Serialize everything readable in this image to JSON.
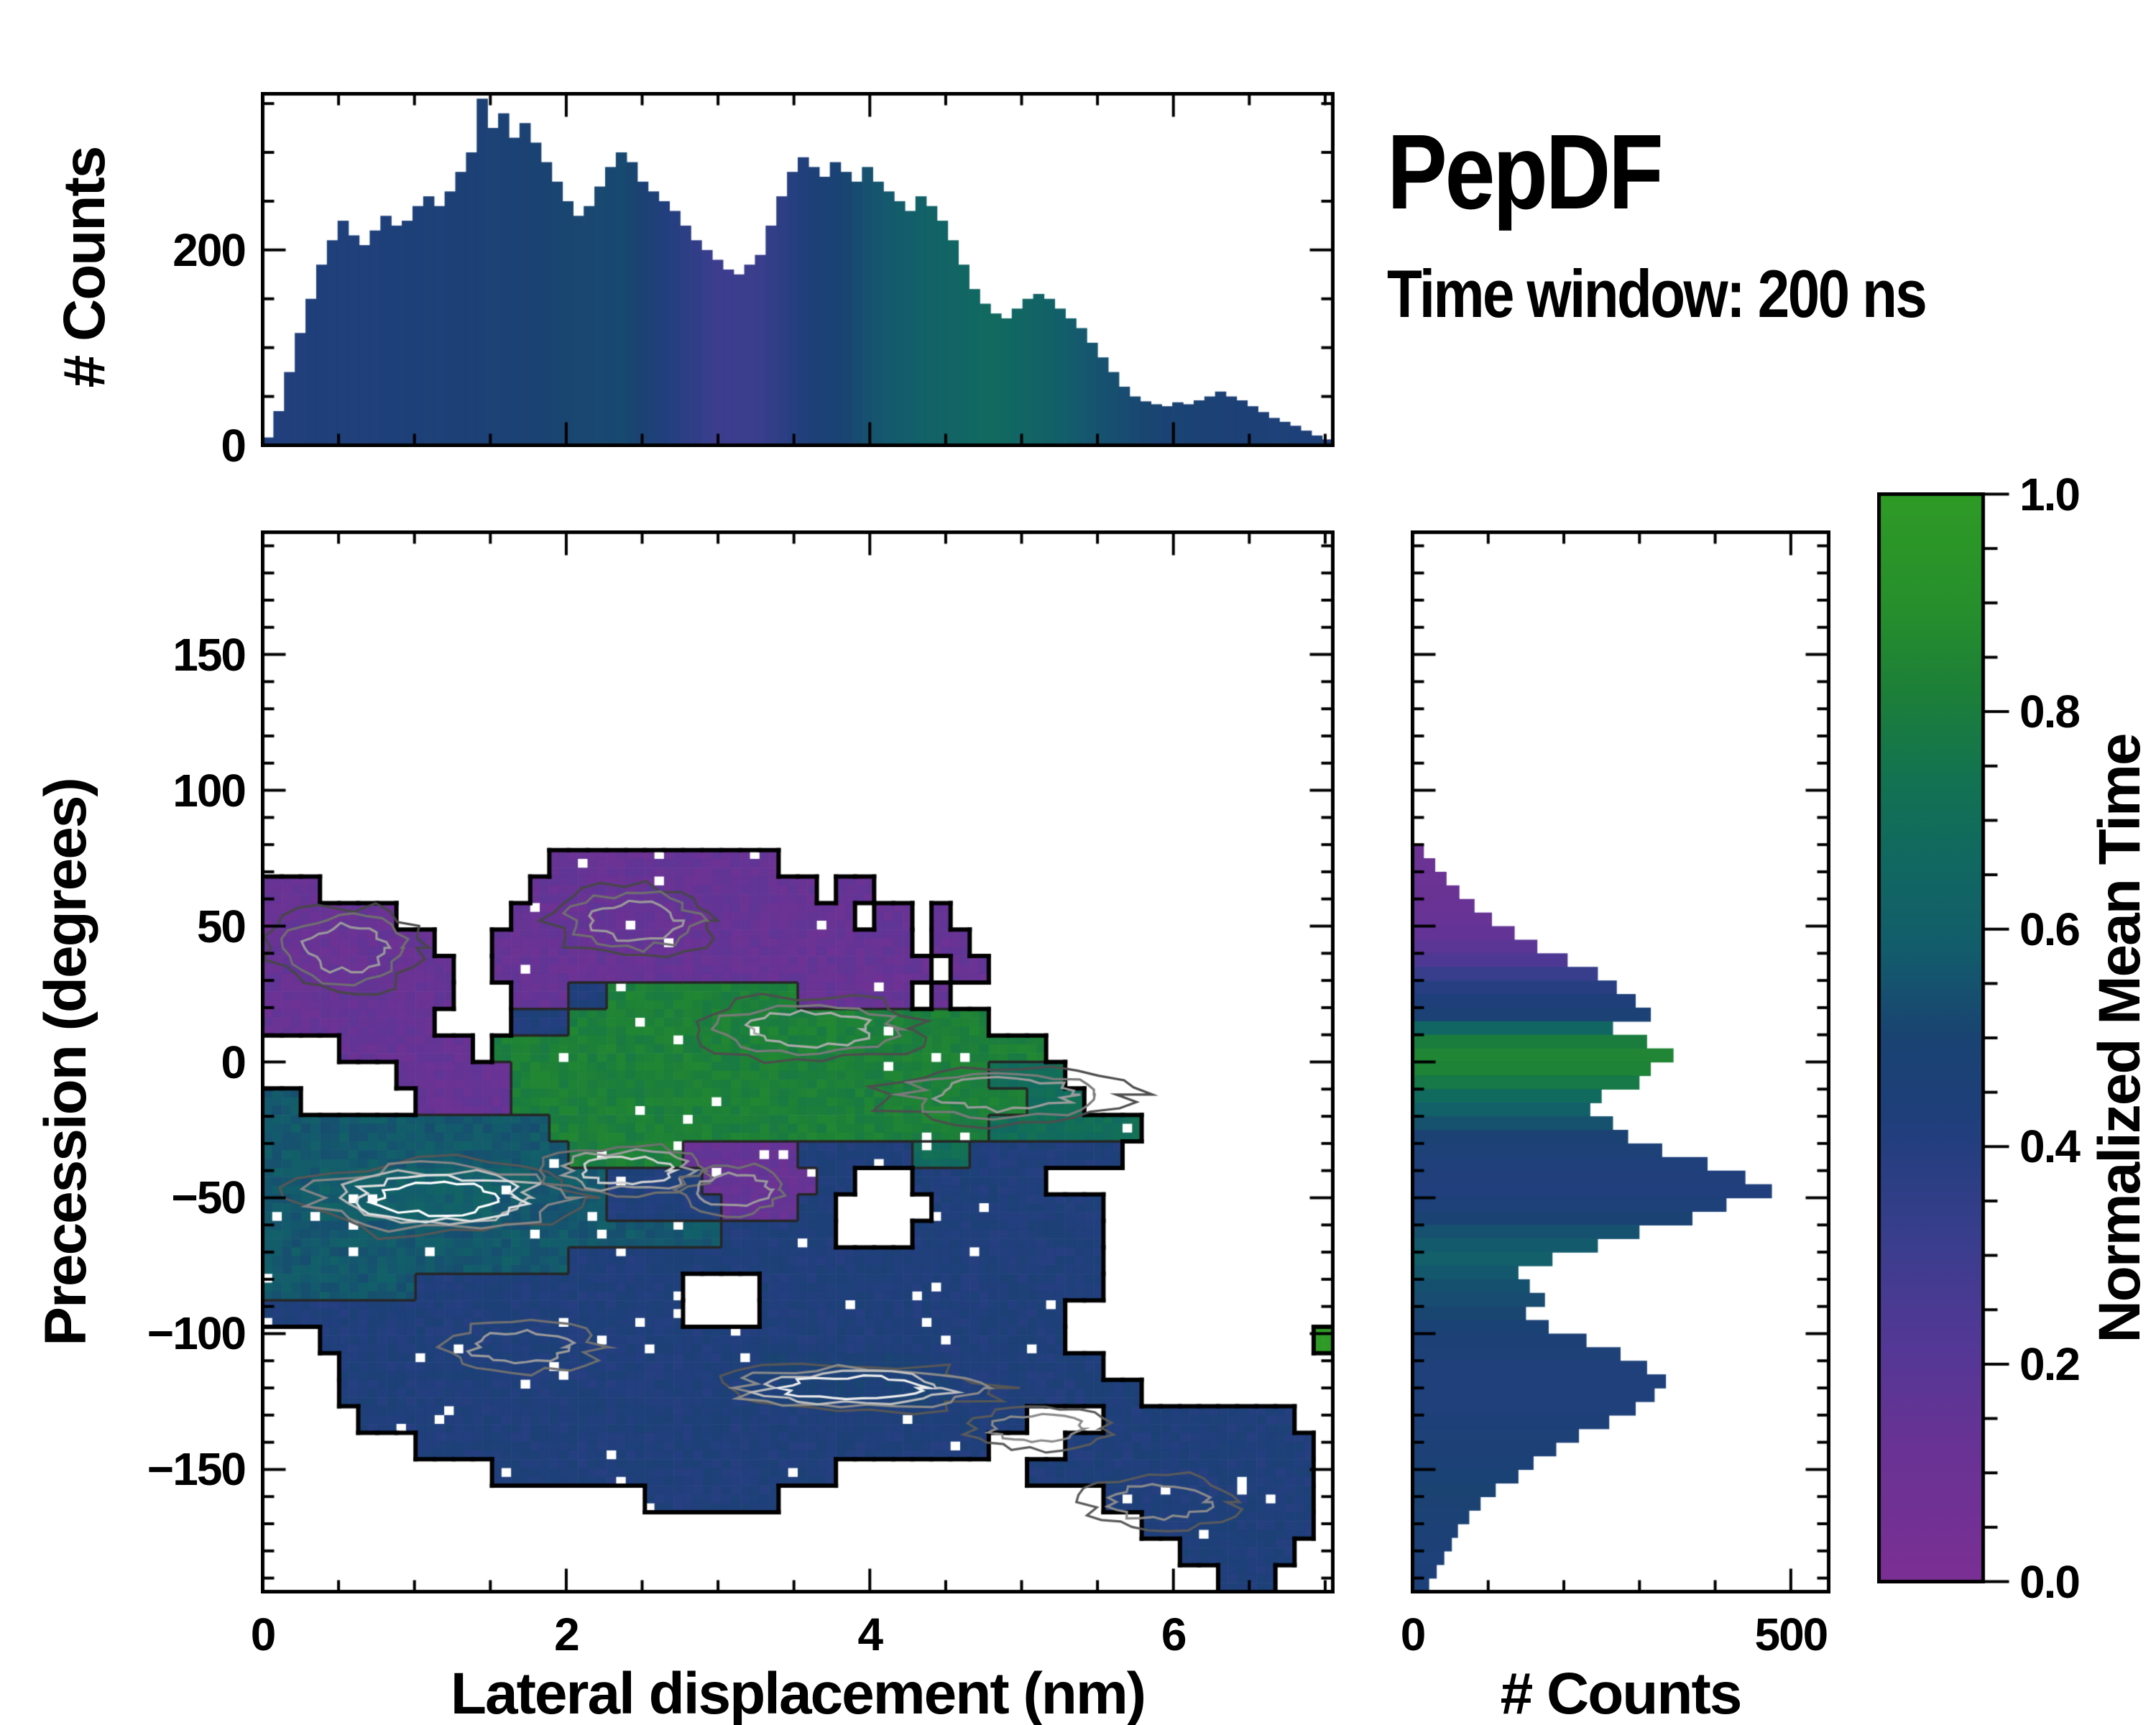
{
  "title": {
    "text": "PepDF",
    "subtitle": "Time window: 200 ns"
  },
  "colormap": {
    "label": "Normalized Mean Time",
    "stops": [
      [
        0.0,
        "#7b2f95"
      ],
      [
        0.12,
        "#693394"
      ],
      [
        0.22,
        "#533896"
      ],
      [
        0.32,
        "#383e8c"
      ],
      [
        0.42,
        "#203f7c"
      ],
      [
        0.5,
        "#1a4372"
      ],
      [
        0.58,
        "#135c6c"
      ],
      [
        0.66,
        "#116861"
      ],
      [
        0.74,
        "#137351"
      ],
      [
        0.82,
        "#1d8038"
      ],
      [
        0.9,
        "#27902c"
      ],
      [
        1.0,
        "#2f9b26"
      ]
    ],
    "ticks": [
      {
        "value": 0.0,
        "label": "0.0"
      },
      {
        "value": 0.2,
        "label": "0.2"
      },
      {
        "value": 0.4,
        "label": "0.4"
      },
      {
        "value": 0.6,
        "label": "0.6"
      },
      {
        "value": 0.8,
        "label": "0.8"
      },
      {
        "value": 1.0,
        "label": "1.0"
      }
    ],
    "minor_tick_step": 0.05
  },
  "chart_data": [
    {
      "id": "top_histogram",
      "type": "bar",
      "orientation": "vertical",
      "ylabel": "# Counts",
      "x_range": [
        0,
        7.05
      ],
      "y_range": [
        0,
        360
      ],
      "x_ticks_labeled": [
        0,
        2,
        4,
        6
      ],
      "x_tick_minor_step": 0.5,
      "y_ticks": [
        {
          "value": 0,
          "label": "0"
        },
        {
          "value": 200,
          "label": "200"
        }
      ],
      "y_tick_minor_step": 50,
      "bin_start": 0,
      "bin_width": 0.0705,
      "values": [
        8,
        35,
        75,
        115,
        150,
        185,
        210,
        230,
        215,
        205,
        220,
        235,
        225,
        230,
        245,
        255,
        245,
        260,
        280,
        300,
        355,
        325,
        340,
        315,
        330,
        310,
        290,
        270,
        250,
        235,
        245,
        265,
        285,
        300,
        290,
        270,
        260,
        250,
        240,
        225,
        210,
        200,
        190,
        180,
        175,
        185,
        195,
        225,
        255,
        280,
        295,
        285,
        275,
        290,
        280,
        270,
        285,
        270,
        260,
        250,
        240,
        255,
        245,
        230,
        210,
        185,
        160,
        145,
        135,
        130,
        140,
        150,
        155,
        150,
        140,
        130,
        120,
        105,
        90,
        75,
        60,
        50,
        45,
        42,
        40,
        44,
        42,
        46,
        50,
        55,
        50,
        46,
        40,
        34,
        28,
        24,
        20,
        15,
        10,
        6
      ],
      "color_by": "normalized_mean_time",
      "color_anchors": [
        [
          0,
          0.42
        ],
        [
          0.8,
          0.44
        ],
        [
          1.5,
          0.47
        ],
        [
          2.0,
          0.51
        ],
        [
          2.4,
          0.52
        ],
        [
          2.7,
          0.4
        ],
        [
          3.0,
          0.3
        ],
        [
          3.3,
          0.32
        ],
        [
          3.6,
          0.44
        ],
        [
          4.0,
          0.55
        ],
        [
          4.4,
          0.62
        ],
        [
          4.8,
          0.67
        ],
        [
          5.1,
          0.63
        ],
        [
          5.5,
          0.55
        ],
        [
          5.9,
          0.5
        ],
        [
          6.3,
          0.47
        ],
        [
          7.0,
          0.44
        ]
      ]
    },
    {
      "id": "joint_density_map",
      "type": "heatmap",
      "xlabel": "Lateral displacement (nm)",
      "ylabel": "Precession (degrees)",
      "x_range": [
        0,
        7.05
      ],
      "y_range": [
        -195,
        195
      ],
      "x_ticks_labeled": [
        0,
        2,
        4,
        6
      ],
      "x_tick_minor_step": 0.5,
      "y_ticks": [
        {
          "value": 150,
          "label": "150"
        },
        {
          "value": 100,
          "label": "100"
        },
        {
          "value": 50,
          "label": "50"
        },
        {
          "value": 0,
          "label": "0"
        },
        {
          "value": -50,
          "label": "−50"
        },
        {
          "value": -100,
          "label": "−100"
        },
        {
          "value": -150,
          "label": "−150"
        }
      ],
      "y_tick_minor_step": 10,
      "grid_cols": 56,
      "grid_rows": 40,
      "code_values": {
        "P": 0.13,
        "G": 0.82,
        "D": 0.7,
        "T": 0.57,
        "B": 0.43,
        "W": 0.6,
        "L": 0.47
      },
      "code_meaning": {
        "P": "purple: low normalized mean time (~0.1-0.2)",
        "G": "green: high normalized mean time (~0.8-0.9)",
        "D": "dark green-teal (~0.7)",
        "T": "teal (~0.55-0.6)",
        "B": "navy blue (~0.4-0.45)",
        "W": "teal with bright white density contours",
        "L": "blue with light density contours",
        ".": "empty (no counts)"
      },
      "grid_codes": [
        "........................................................",
        "........................................................",
        "........................................................",
        "........................................................",
        "........................................................",
        "........................................................",
        "........................................................",
        "........................................................",
        "........................................................",
        "........................................................",
        "........................................................",
        "........................................................",
        "...............PPPPPPPPPPPP.............................",
        "PPP...........PPPPPPPPPPPPPPP.PP........................",
        "PPPPPPP......PPPPPPPPPPPPPPPPPP.PP.P....................",
        "PPPPPPPPP...PPPPPPPPPPPPPPPPPPPPPP.PP...................",
        "PPPPPPPPPP..PPPPPPPPPPPPPPPPPPPPPPP.PP..................",
        "PPPPPPPPPP...PPPBBGGGGGGGGGGPPPPPP.P....................",
        "PPPPPPPPP....BBBGGGGGGGGGGGGGGGGGGGGGG..................",
        "....PPPPPPP.GGGGGGGGGGGGGGGGGGGGGGGGGGGGG...............",
        ".......PPPPPPGGGGGGGGGGGGGGGGGGGGGGGGGDDDD..............",
        "TT......PPPPPGGGGGGGGGGGGGGGGGGGGGGGGGGGDDD.............",
        "TTTTTTTTTTTTTTTGGGGGGGGGGGGGGGGGGGGGGGDDDDDDDD..........",
        "TTTTTTTTTTTTTTTTGGGGGGPPPPPPBBBBBBDDDBBBBBBBB...........",
        "TTTWWWWWWWWWWWTTTTBBBBBPPPPPPBB...BBBBBBB...............",
        "TTTWWWWWWWWWTTTTTTBBBBBBPPPPBB.....BBBBBBBBB............",
        "TTTTTTTTTTTTTTTTTTTTTTTTBBBBBB....BBBBBBBBBB............",
        "TTTTTTTTTTTTTTTTBBBBBBBBBBBBBBBBBBBBBBBBBBBB............",
        "TTTTTTTTBBBBBBBBBBBBBB....BBBBBBBBBBBBBBBBBB............",
        "BBBBBBBBBBBBBBBBBBBBBB....BBBBBBBBBBBBBBBB..............",
        "...BBBBBBBBBBBBBBBBBBBBBBBBBBBBBBBBBBBBBBB.............",
        "....BBBBBBBBBBBBBBBBBBBBBBLLLLLLLLBBBBBBBBBB............",
        "....BBBBBBBBBBBBBBBBBBBBBBBLLLLLLLLLBBBBBBBBBB..........",
        ".....BBBBBBBBBBBBBBBBBBBBBBBBBBBBBBBBBBB....BBBBBBBBBB..",
        "........BBBBBBBBBBBBBBBBBBBBBBBBBBBBBB....BBBBBBBBBBBBB.",
        "............BBBBBBBBBBBBBBBBBB..........BBBBBBBBBBBBBBB.",
        "....................BBBBBBB.................BBBBBBBBBBB.",
        "..............................................BBBBBBBBB.",
        "................................................BBBBBB..",
        "..................................................BBB..."
      ],
      "density_contours": [
        {
          "cx": 0.55,
          "cy": 42,
          "rx": 0.5,
          "ry": 16,
          "levels": 3,
          "colors": [
            "#474747",
            "#6f6f6f",
            "#9a9a9a"
          ]
        },
        {
          "cx": 2.45,
          "cy": 52,
          "rx": 0.55,
          "ry": 13,
          "levels": 3,
          "colors": [
            "#474747",
            "#6f6f6f",
            "#9a9a9a"
          ]
        },
        {
          "cx": 3.6,
          "cy": 12,
          "rx": 0.75,
          "ry": 12,
          "levels": 3,
          "colors": [
            "#4d4d4d",
            "#7a7a7a",
            "#ababab"
          ]
        },
        {
          "cx": 4.9,
          "cy": -12,
          "rx": 0.85,
          "ry": 11,
          "levels": 3,
          "colors": [
            "#4d4d4d",
            "#7a7a7a",
            "#9a9a9a"
          ]
        },
        {
          "cx": 1.15,
          "cy": -50,
          "rx": 0.95,
          "ry": 14,
          "levels": 5,
          "colors": [
            "#565656",
            "#858585",
            "#b5b5b5",
            "#e0e0e0",
            "#ffffff"
          ]
        },
        {
          "cx": 2.4,
          "cy": -40,
          "rx": 0.55,
          "ry": 9,
          "levels": 3,
          "colors": [
            "#6f6f6f",
            "#9a9a9a",
            "#cfcfcf"
          ]
        },
        {
          "cx": 3.1,
          "cy": -47,
          "rx": 0.35,
          "ry": 9,
          "levels": 2,
          "colors": [
            "#6f6f6f",
            "#9a9a9a"
          ]
        },
        {
          "cx": 3.9,
          "cy": -120,
          "rx": 0.95,
          "ry": 9,
          "levels": 4,
          "colors": [
            "#565656",
            "#8a8a8a",
            "#bdbdbd",
            "#ededed"
          ]
        },
        {
          "cx": 1.7,
          "cy": -105,
          "rx": 0.5,
          "ry": 9,
          "levels": 2,
          "colors": [
            "#6f6f6f",
            "#9a9a9a"
          ]
        },
        {
          "cx": 5.1,
          "cy": -135,
          "rx": 0.45,
          "ry": 8,
          "levels": 2,
          "colors": [
            "#5a5a5a",
            "#8a8a8a"
          ]
        },
        {
          "cx": 5.9,
          "cy": -162,
          "rx": 0.5,
          "ry": 10,
          "levels": 2,
          "colors": [
            "#5a5a5a",
            "#8a8a8a"
          ]
        }
      ]
    },
    {
      "id": "right_histogram",
      "type": "bar",
      "orientation": "horizontal",
      "xlabel": "# Counts",
      "x_range": [
        0,
        550
      ],
      "x_ticks": [
        {
          "value": 0,
          "label": "0"
        },
        {
          "value": 500,
          "label": "500"
        }
      ],
      "x_tick_minor_step": 100,
      "y_range": [
        -195,
        195
      ],
      "y_tick_minor_step": 10,
      "bin_start_y": 80,
      "bin_height": 5,
      "values_top_to_bottom": [
        15,
        30,
        45,
        62,
        82,
        105,
        135,
        165,
        205,
        245,
        270,
        295,
        315,
        265,
        310,
        345,
        315,
        300,
        250,
        235,
        265,
        285,
        330,
        390,
        440,
        475,
        415,
        370,
        300,
        245,
        185,
        140,
        155,
        175,
        150,
        180,
        230,
        275,
        310,
        335,
        320,
        295,
        260,
        220,
        190,
        160,
        140,
        110,
        90,
        75,
        60,
        52,
        42,
        32,
        22
      ],
      "color_anchors_y": [
        [
          80,
          0.1
        ],
        [
          50,
          0.13
        ],
        [
          40,
          0.2
        ],
        [
          32,
          0.33
        ],
        [
          26,
          0.41
        ],
        [
          20,
          0.44
        ],
        [
          15,
          0.52
        ],
        [
          11,
          0.72
        ],
        [
          6,
          0.84
        ],
        [
          0,
          0.85
        ],
        [
          -6,
          0.8
        ],
        [
          -12,
          0.68
        ],
        [
          -18,
          0.6
        ],
        [
          -24,
          0.53
        ],
        [
          -30,
          0.46
        ],
        [
          -38,
          0.43
        ],
        [
          -48,
          0.42
        ],
        [
          -56,
          0.48
        ],
        [
          -64,
          0.56
        ],
        [
          -72,
          0.6
        ],
        [
          -80,
          0.55
        ],
        [
          -90,
          0.52
        ],
        [
          -100,
          0.47
        ],
        [
          -112,
          0.44
        ],
        [
          -124,
          0.43
        ],
        [
          -136,
          0.45
        ],
        [
          -148,
          0.47
        ],
        [
          -158,
          0.5
        ],
        [
          -170,
          0.47
        ],
        [
          -195,
          0.44
        ]
      ]
    }
  ]
}
